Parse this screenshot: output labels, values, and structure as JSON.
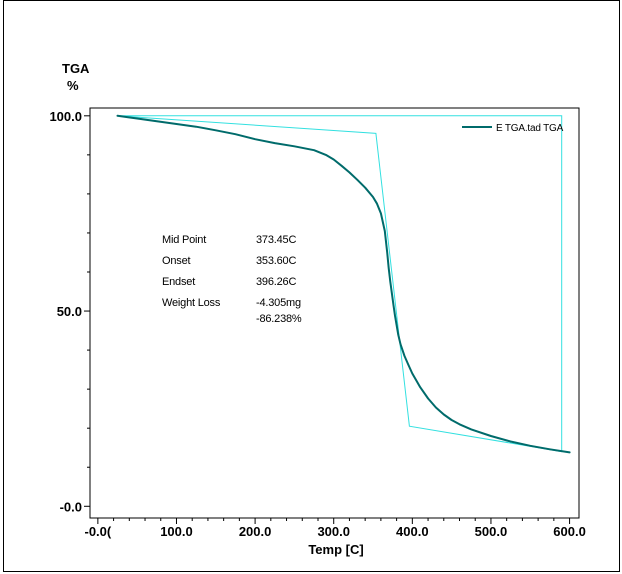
{
  "chart_data": {
    "type": "line",
    "title": "",
    "ylabel_top": "TGA",
    "ylabel_unit": "%",
    "xlabel": "Temp [C]",
    "xlim": [
      -10,
      612
    ],
    "ylim": [
      -3,
      102
    ],
    "x_ticks": [
      {
        "value": 0,
        "label": "-0.0("
      },
      {
        "value": 100,
        "label": "100.0"
      },
      {
        "value": 200,
        "label": "200.0"
      },
      {
        "value": 300,
        "label": "300.0"
      },
      {
        "value": 400,
        "label": "400.0"
      },
      {
        "value": 500,
        "label": "500.0"
      },
      {
        "value": 600,
        "label": "600.0"
      }
    ],
    "y_ticks": [
      {
        "value": 0,
        "label": "-0.0"
      },
      {
        "value": 50,
        "label": "50.0"
      },
      {
        "value": 100,
        "label": "100.0"
      }
    ],
    "grid": false,
    "legend_position": "top-right",
    "series": [
      {
        "name": "E TGA.tad  TGA",
        "color": "#006b6b",
        "x": [
          25,
          50,
          75,
          100,
          125,
          150,
          175,
          200,
          225,
          250,
          275,
          290,
          300,
          310,
          320,
          330,
          340,
          350,
          355,
          360,
          365,
          368,
          370,
          372,
          374,
          376,
          378,
          380,
          382,
          385,
          390,
          395,
          400,
          410,
          420,
          430,
          440,
          450,
          460,
          475,
          500,
          525,
          550,
          575,
          600
        ],
        "y": [
          100.0,
          99.3,
          98.6,
          97.9,
          97.2,
          96.3,
          95.3,
          94.0,
          93.0,
          92.2,
          91.2,
          90.0,
          88.8,
          87.2,
          85.5,
          83.6,
          81.6,
          79.2,
          77.5,
          75.0,
          70.5,
          65.0,
          61.0,
          57.5,
          54.5,
          51.5,
          48.8,
          46.4,
          44.0,
          41.5,
          38.5,
          36.2,
          34.0,
          30.5,
          27.6,
          25.3,
          23.5,
          22.1,
          21.0,
          19.7,
          18.0,
          16.6,
          15.5,
          14.6,
          13.8
        ]
      }
    ],
    "construction_lines": {
      "color": "#33e0e0",
      "polyline": [
        {
          "x": 25,
          "y": 100.0
        },
        {
          "x": 353.6,
          "y": 95.5
        },
        {
          "x": 396.26,
          "y": 20.5
        },
        {
          "x": 590,
          "y": 14.0
        },
        {
          "x": 590,
          "y": 100.0
        },
        {
          "x": 25,
          "y": 100.0
        }
      ]
    },
    "annotations": [
      {
        "label": "Mid Point",
        "value": "373.45C"
      },
      {
        "label": "Onset",
        "value": "353.60C"
      },
      {
        "label": "Endset",
        "value": "396.26C"
      },
      {
        "label": "Weight Loss",
        "value": "-4.305mg"
      },
      {
        "label": "",
        "value": "-86.238%"
      }
    ]
  }
}
